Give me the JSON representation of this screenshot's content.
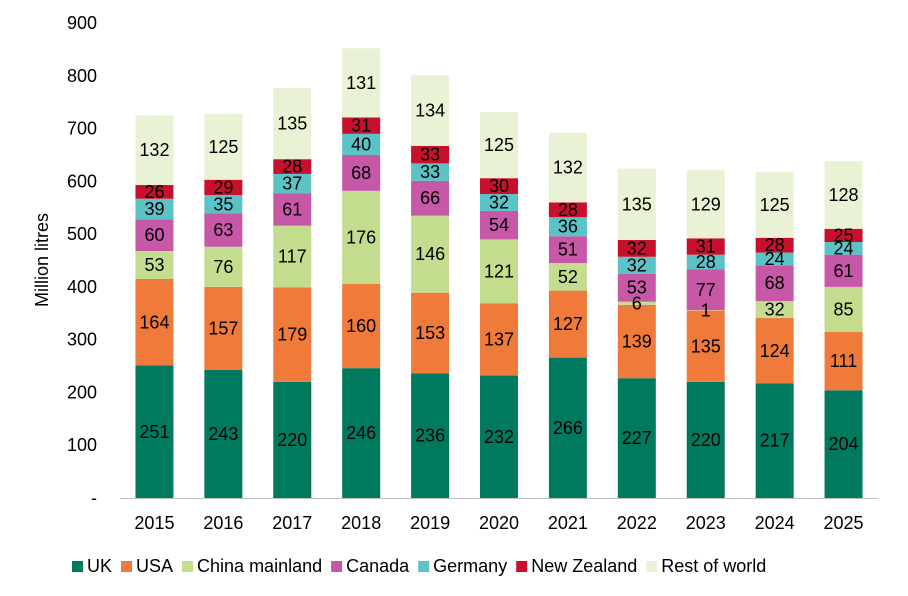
{
  "chart_data": {
    "type": "bar",
    "stacked": true,
    "ylabel": "Million litres",
    "xlabel": "",
    "ylim": [
      0,
      900
    ],
    "yticks": [
      {
        "value": 0,
        "label": "-"
      },
      {
        "value": 100,
        "label": "100"
      },
      {
        "value": 200,
        "label": "200"
      },
      {
        "value": 300,
        "label": "300"
      },
      {
        "value": 400,
        "label": "400"
      },
      {
        "value": 500,
        "label": "500"
      },
      {
        "value": 600,
        "label": "600"
      },
      {
        "value": 700,
        "label": "700"
      },
      {
        "value": 800,
        "label": "800"
      },
      {
        "value": 900,
        "label": "900"
      }
    ],
    "grid": false,
    "legend_position": "bottom",
    "categories": [
      "2015",
      "2016",
      "2017",
      "2018",
      "2019",
      "2020",
      "2021",
      "2022",
      "2023",
      "2024",
      "2025"
    ],
    "series": [
      {
        "name": "UK",
        "color": "#007A5E",
        "values": [
          251,
          243,
          220,
          246,
          236,
          232,
          266,
          227,
          220,
          217,
          204
        ]
      },
      {
        "name": "USA",
        "color": "#F07A3A",
        "values": [
          164,
          157,
          179,
          160,
          153,
          137,
          127,
          139,
          135,
          124,
          111
        ]
      },
      {
        "name": "China mainland",
        "color": "#C4DC8E",
        "values": [
          53,
          76,
          117,
          176,
          146,
          121,
          52,
          6,
          1,
          32,
          85
        ]
      },
      {
        "name": "Canada",
        "color": "#C758A8",
        "values": [
          60,
          63,
          61,
          68,
          66,
          54,
          51,
          53,
          77,
          68,
          61
        ]
      },
      {
        "name": "Germany",
        "color": "#5BC3C5",
        "values": [
          39,
          35,
          37,
          40,
          33,
          32,
          36,
          32,
          28,
          24,
          24
        ]
      },
      {
        "name": "New Zealand",
        "color": "#C8102E",
        "values": [
          26,
          29,
          28,
          31,
          33,
          30,
          28,
          32,
          31,
          28,
          25
        ]
      },
      {
        "name": "Rest of world",
        "color": "#E9F2D4",
        "values": [
          132,
          125,
          135,
          131,
          134,
          125,
          132,
          135,
          129,
          125,
          128
        ]
      }
    ]
  }
}
